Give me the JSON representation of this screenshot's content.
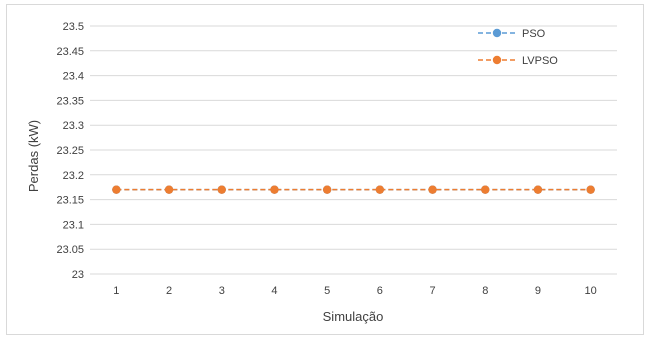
{
  "chart_data": {
    "type": "line",
    "title": "",
    "xlabel": "Simulação",
    "ylabel": "Perdas (kW)",
    "categories": [
      "1",
      "2",
      "3",
      "4",
      "5",
      "6",
      "7",
      "8",
      "9",
      "10"
    ],
    "ylim": [
      23,
      23.5
    ],
    "yticks": [
      "23",
      "23.05",
      "23.1",
      "23.15",
      "23.2",
      "23.25",
      "23.3",
      "23.35",
      "23.4",
      "23.45",
      "23.5"
    ],
    "grid": true,
    "legend_position": "top-right",
    "series": [
      {
        "name": "PSO",
        "color": "#5b9bd5",
        "values": [
          23.17,
          23.17,
          23.17,
          23.17,
          23.17,
          23.17,
          23.17,
          23.17,
          23.17,
          23.17
        ]
      },
      {
        "name": "LVPSO",
        "color": "#ed7d31",
        "values": [
          23.17,
          23.17,
          23.17,
          23.17,
          23.17,
          23.17,
          23.17,
          23.17,
          23.17,
          23.17
        ]
      }
    ]
  }
}
